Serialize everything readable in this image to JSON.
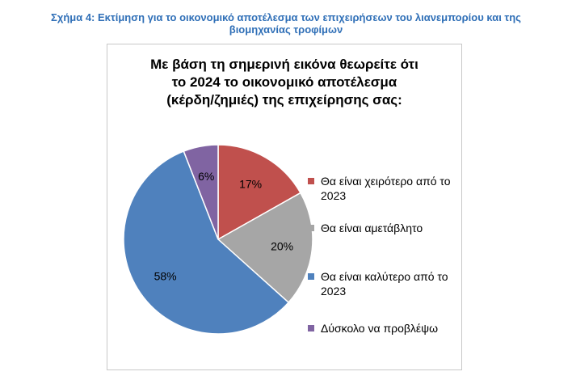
{
  "caption": {
    "line1": "Σχήμα 4: Εκτίμηση για το οικονομικό αποτέλεσμα των επιχειρήσεων του λιανεμπορίου και της",
    "line2": "βιομηχανίας τροφίμων"
  },
  "chart_data": {
    "type": "pie",
    "title_lines": [
      "Με βάση τη σημερινή εικόνα θεωρείτε ότι",
      "το 2024 το οικονομικό αποτέλεσμα",
      "(κέρδη/ζημιές) της επιχείρησης σας:"
    ],
    "slices": [
      {
        "label": "Θα είναι χειρότερο από το 2023",
        "value": 17,
        "display": "17%",
        "color": "#c0504d"
      },
      {
        "label": "Θα είναι αμετάβλητο",
        "value": 20,
        "display": "20%",
        "color": "#a6a6a6"
      },
      {
        "label": "Θα είναι καλύτερο από το 2023",
        "value": 58,
        "display": "58%",
        "color": "#4f81bd"
      },
      {
        "label": "Δύσκολο να προβλέψω",
        "value": 6,
        "display": "6%",
        "color": "#8064a2"
      }
    ],
    "legend_position": "right"
  }
}
